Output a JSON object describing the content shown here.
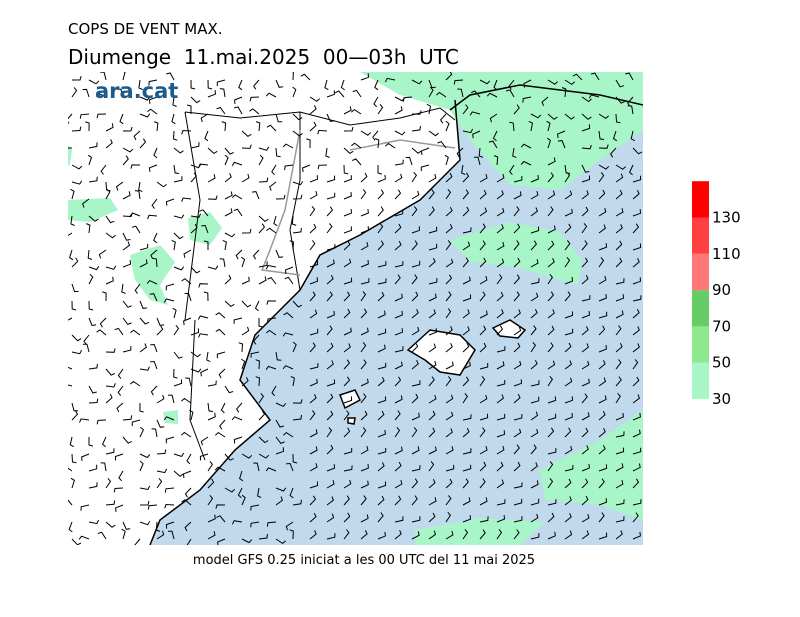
{
  "header": {
    "title": "COPS DE VENT MAX.",
    "subtitle": "Diumenge  11.mai.2025  00—03h  UTC",
    "logo": "ara.cat"
  },
  "footer": "model GFS 0.25 iniciat a les 00 UTC del 11 mai 2025",
  "colorbar": {
    "ticks": [
      30,
      50,
      70,
      90,
      110,
      130
    ],
    "colors": [
      "#a8f5c8",
      "#8ee88e",
      "#66cc66",
      "#ff7777",
      "#ff4040",
      "#ff0000"
    ]
  }
}
